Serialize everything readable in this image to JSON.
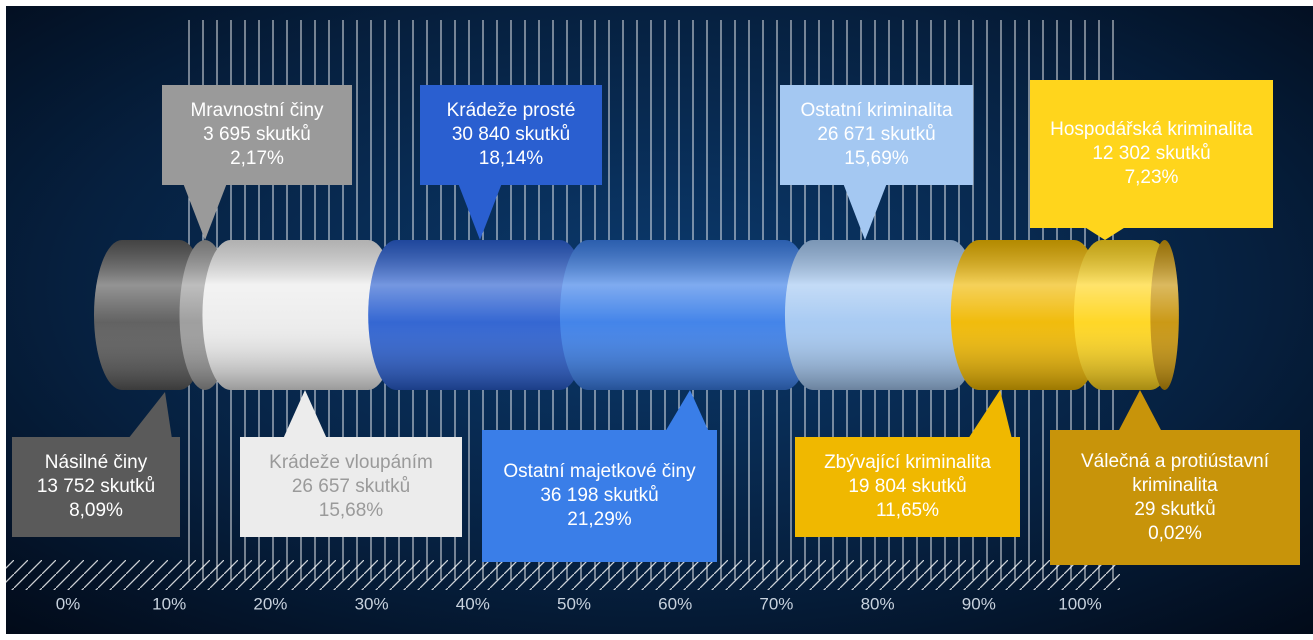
{
  "chart_data": {
    "type": "stacked-cylinder",
    "categories": [
      "Násilné činy",
      "Mravnostní činy",
      "Krádeže vloupáním",
      "Krádeže prosté",
      "Ostatní majetkové činy",
      "Ostatní kriminalita",
      "Zbývající kriminalita",
      "Hospodářská kriminalita",
      "Válečná a protiústavní kriminalita"
    ],
    "values": [
      8.09,
      2.17,
      15.68,
      18.14,
      21.29,
      15.69,
      11.65,
      7.23,
      0.02
    ],
    "value_labels": [
      "8,09%",
      "2,17%",
      "15,68%",
      "18,14%",
      "21,29%",
      "15,69%",
      "11,65%",
      "7,23%",
      "0,02%"
    ],
    "counts": [
      13752,
      3695,
      26657,
      30840,
      36198,
      26671,
      19804,
      12302,
      29
    ],
    "count_labels": [
      "13 752 skutků",
      "3 695 skutků",
      "26 657 skutků",
      "30 840 skutků",
      "36 198 skutků",
      "26 671 skutků",
      "19 804 skutků",
      "12 302 skutků",
      "29 skutků"
    ],
    "colors": [
      "#5a5a5a",
      "#9a9a9a",
      "#ececec",
      "#2a5fd0",
      "#3a7ee8",
      "#a4c8f2",
      "#f0b800",
      "#ffd51c",
      "#c8940a"
    ],
    "xlim": [
      0,
      100
    ],
    "xticks": [
      {
        "value": 0,
        "label": "0%"
      },
      {
        "value": 10,
        "label": "10%"
      },
      {
        "value": 20,
        "label": "20%"
      },
      {
        "value": 30,
        "label": "30%"
      },
      {
        "value": 40,
        "label": "40%"
      },
      {
        "value": 50,
        "label": "50%"
      },
      {
        "value": 60,
        "label": "60%"
      },
      {
        "value": 70,
        "label": "70%"
      },
      {
        "value": 80,
        "label": "80%"
      },
      {
        "value": 90,
        "label": "90%"
      },
      {
        "value": 100,
        "label": "100%"
      }
    ]
  }
}
